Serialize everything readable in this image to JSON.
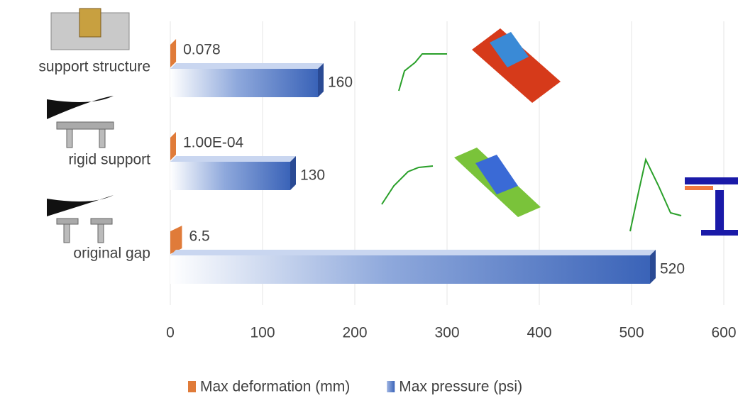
{
  "chart_data": {
    "type": "bar",
    "orientation": "horizontal",
    "categories": [
      "support structure",
      "rigid support",
      "original gap"
    ],
    "series": [
      {
        "name": "Max deformation (mm)",
        "color": "#e07b39",
        "values": [
          0.078,
          0.0001,
          6.5
        ],
        "value_labels": [
          "0.078",
          "1.00E-04",
          "6.5"
        ]
      },
      {
        "name": "Max pressure (psi)",
        "color": "#3a63b8",
        "values": [
          160,
          130,
          520
        ]
      }
    ],
    "xlim": [
      0,
      600
    ],
    "xticks": [
      0,
      100,
      200,
      300,
      400,
      500,
      600
    ],
    "grid": true,
    "legend": "bottom"
  }
}
